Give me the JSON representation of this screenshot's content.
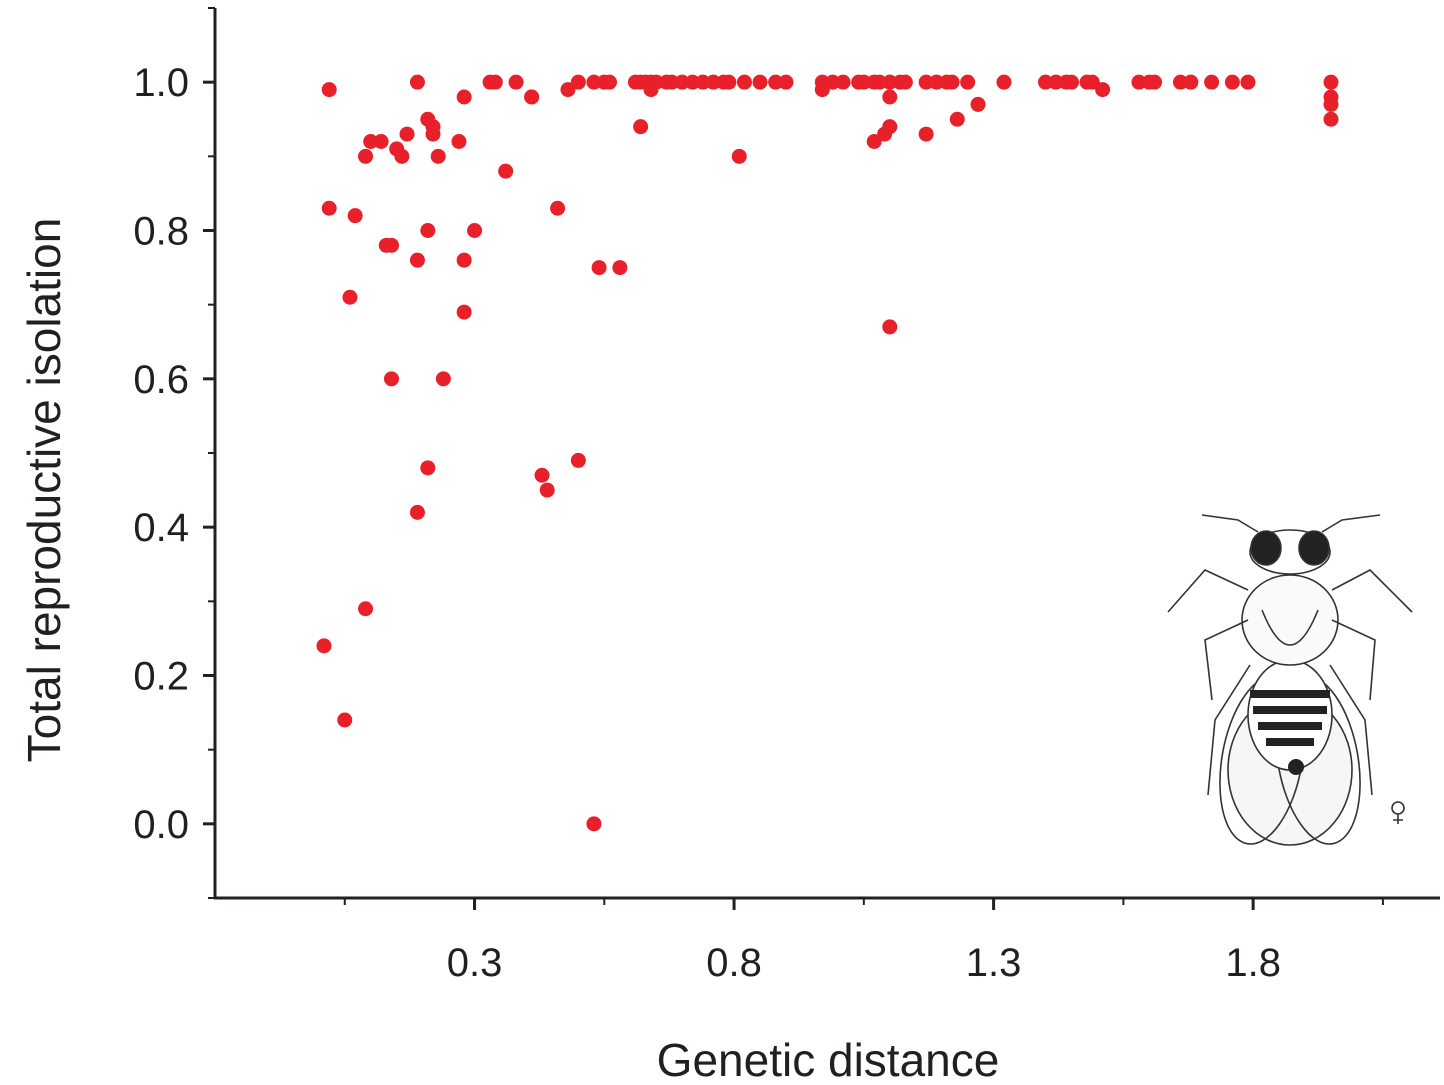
{
  "chart_data": {
    "type": "scatter",
    "x_label": "Genetic distance",
    "y_label": "Total reproductive isolation",
    "color": "#e8202a",
    "xlim": [
      -0.2,
      2.16
    ],
    "ylim": [
      -0.1,
      1.1
    ],
    "xticks": [
      0.3,
      0.8,
      1.3,
      1.8
    ],
    "yticks": [
      {
        "value": 0,
        "label": "0.0"
      },
      0.2,
      0.4,
      0.6,
      0.8,
      {
        "value": 1,
        "label": "1.0"
      }
    ],
    "xminorticks": [
      0.05,
      0.55,
      1.05,
      1.55,
      2.05
    ],
    "yminorticks": [
      -0.1,
      0.1,
      0.3,
      0.5,
      0.7,
      0.9,
      1.1
    ],
    "x": [
      0.01,
      0.05,
      0.02,
      0.02,
      0.07,
      0.06,
      0.09,
      0.09,
      0.1,
      0.12,
      0.13,
      0.14,
      0.14,
      0.15,
      0.16,
      0.17,
      0.19,
      0.19,
      0.19,
      0.21,
      0.21,
      0.21,
      0.22,
      0.22,
      0.23,
      0.24,
      0.27,
      0.28,
      0.28,
      0.28,
      0.3,
      0.33,
      0.34,
      0.36,
      0.38,
      0.41,
      0.41,
      0.43,
      0.44,
      0.46,
      0.48,
      0.5,
      0.5,
      0.53,
      0.53,
      0.54,
      0.55,
      0.56,
      0.58,
      0.61,
      0.62,
      0.63,
      0.64,
      0.65,
      0.67,
      0.62,
      0.64,
      0.68,
      0.7,
      0.72,
      0.74,
      0.76,
      0.78,
      0.79,
      0.82,
      0.85,
      0.88,
      0.9,
      0.81,
      0.97,
      0.97,
      0.99,
      1.01,
      1.04,
      1.05,
      1.07,
      1.08,
      1.1,
      1.12,
      1.13,
      1.07,
      1.09,
      1.1,
      1.1,
      1.1,
      1.17,
      1.19,
      1.21,
      1.22,
      1.25,
      1.17,
      1.23,
      1.27,
      1.32,
      1.4,
      1.42,
      1.44,
      1.45,
      1.48,
      1.49,
      1.51,
      1.58,
      1.6,
      1.61,
      1.66,
      1.68,
      1.72,
      1.76,
      1.79,
      1.95,
      1.95,
      1.95,
      1.95
    ],
    "values": [
      0.24,
      0.14,
      0.99,
      0.83,
      0.82,
      0.71,
      0.9,
      0.29,
      0.92,
      0.92,
      0.78,
      0.6,
      0.78,
      0.91,
      0.9,
      0.93,
      1.0,
      0.76,
      0.42,
      0.95,
      0.8,
      0.48,
      0.94,
      0.93,
      0.9,
      0.6,
      0.92,
      0.69,
      0.76,
      0.98,
      0.8,
      1.0,
      1.0,
      0.88,
      1.0,
      0.98,
      0.98,
      0.47,
      0.45,
      0.83,
      0.99,
      0.49,
      1.0,
      1.0,
      0.0,
      0.75,
      1.0,
      1.0,
      0.75,
      1.0,
      1.0,
      1.0,
      1.0,
      1.0,
      1.0,
      0.94,
      0.99,
      1.0,
      1.0,
      1.0,
      1.0,
      1.0,
      1.0,
      1.0,
      1.0,
      1.0,
      1.0,
      1.0,
      0.9,
      1.0,
      0.99,
      1.0,
      1.0,
      1.0,
      1.0,
      1.0,
      1.0,
      1.0,
      1.0,
      1.0,
      0.92,
      0.93,
      0.94,
      0.98,
      0.67,
      1.0,
      1.0,
      1.0,
      1.0,
      1.0,
      0.93,
      0.95,
      0.97,
      1.0,
      1.0,
      1.0,
      1.0,
      1.0,
      1.0,
      1.0,
      0.99,
      1.0,
      1.0,
      1.0,
      1.0,
      1.0,
      1.0,
      1.0,
      1.0,
      1.0,
      0.98,
      0.97,
      0.95
    ]
  }
}
